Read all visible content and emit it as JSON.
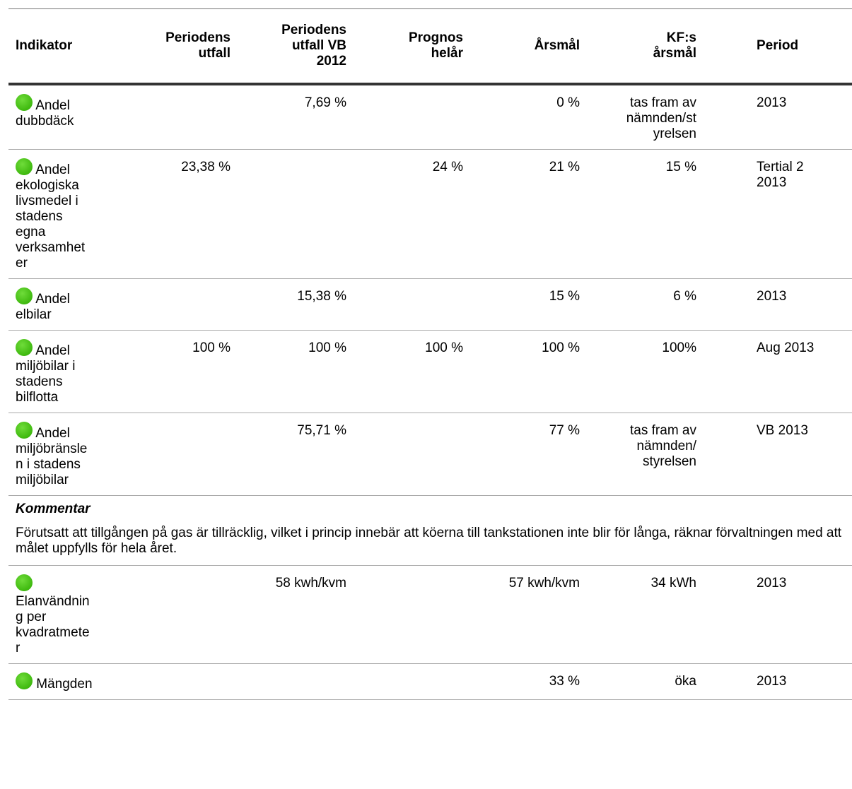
{
  "table": {
    "columns": [
      [
        "Indikator"
      ],
      [
        "Periodens",
        "utfall"
      ],
      [
        "Periodens",
        "utfall VB",
        "2012"
      ],
      [
        "Prognos",
        "helår"
      ],
      [
        "Årsmål"
      ],
      [
        "KF:s",
        "årsmål"
      ],
      [
        "Period"
      ]
    ],
    "rows": [
      {
        "indicator": [
          "Andel",
          "dubbdäck"
        ],
        "cells": [
          null,
          [
            "7,69 %"
          ],
          null,
          [
            "0 %"
          ],
          [
            "tas fram av",
            "nämnden/st",
            "yrelsen"
          ],
          [
            "2013"
          ]
        ]
      },
      {
        "indicator": [
          "Andel",
          "ekologiska",
          "livsmedel i",
          "stadens",
          "egna",
          "verksamhet",
          "er"
        ],
        "cells": [
          [
            "23,38 %"
          ],
          null,
          [
            "24 %"
          ],
          [
            "21 %"
          ],
          [
            "15 %"
          ],
          [
            "Tertial 2",
            "2013"
          ]
        ]
      },
      {
        "indicator": [
          "Andel",
          "elbilar"
        ],
        "cells": [
          null,
          [
            "15,38 %"
          ],
          null,
          [
            "15 %"
          ],
          [
            "6 %"
          ],
          [
            "2013"
          ]
        ]
      },
      {
        "indicator": [
          "Andel",
          "miljöbilar i",
          "stadens",
          "bilflotta"
        ],
        "cells": [
          [
            "100 %"
          ],
          [
            "100 %"
          ],
          [
            "100 %"
          ],
          [
            "100 %"
          ],
          [
            "100%"
          ],
          [
            "Aug 2013"
          ]
        ]
      },
      {
        "indicator": [
          "Andel",
          "miljöbränsle",
          "n i stadens",
          "miljöbilar"
        ],
        "cells": [
          null,
          [
            "75,71 %"
          ],
          null,
          [
            "77 %"
          ],
          [
            "tas fram av",
            "nämnden/",
            "styrelsen"
          ],
          [
            "VB 2013"
          ]
        ]
      },
      {
        "comment_title": "Kommentar",
        "comment_text": "Förutsatt att tillgången på gas är tillräcklig, vilket i princip innebär att köerna till tankstationen inte blir för långa, räknar förvaltningen med att målet uppfylls för hela året."
      },
      {
        "indicator": [
          "Elanvändnin",
          "g per",
          "kvadratmete",
          "r"
        ],
        "cells": [
          null,
          [
            "58 kwh/kvm"
          ],
          null,
          [
            "57 kwh/kvm"
          ],
          [
            "34 kWh"
          ],
          [
            "2013"
          ]
        ]
      },
      {
        "indicator": [
          "Mängden"
        ],
        "cells": [
          null,
          null,
          null,
          [
            "33 %"
          ],
          [
            "öka"
          ],
          [
            "2013"
          ]
        ]
      }
    ]
  }
}
